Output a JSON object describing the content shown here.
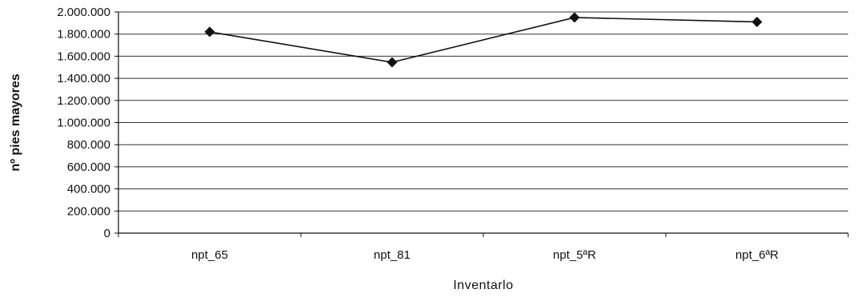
{
  "chart_data": {
    "type": "line",
    "title": "",
    "xlabel": "Inventarlo",
    "ylabel": "nº pies mayores",
    "categories": [
      "npt_65",
      "npt_81",
      "npt_5ªR",
      "npt_6ªR"
    ],
    "series": [
      {
        "values": [
          1820000,
          1545000,
          1950000,
          1910000
        ]
      }
    ],
    "ylim": [
      0,
      2000000
    ],
    "yticks": [
      0,
      200000,
      400000,
      600000,
      800000,
      1000000,
      1200000,
      1400000,
      1600000,
      1800000,
      2000000
    ],
    "ytick_labels": [
      "0",
      "200.000",
      "400.000",
      "600.000",
      "800.000",
      "1.000.000",
      "1.200.000",
      "1.400.000",
      "1.600.000",
      "1.800.000",
      "2.000.000"
    ],
    "grid": true,
    "legend": "none",
    "marker": "diamond",
    "colors": {
      "line": "#111111",
      "grid": "#333333",
      "background": "#ffffff"
    }
  }
}
